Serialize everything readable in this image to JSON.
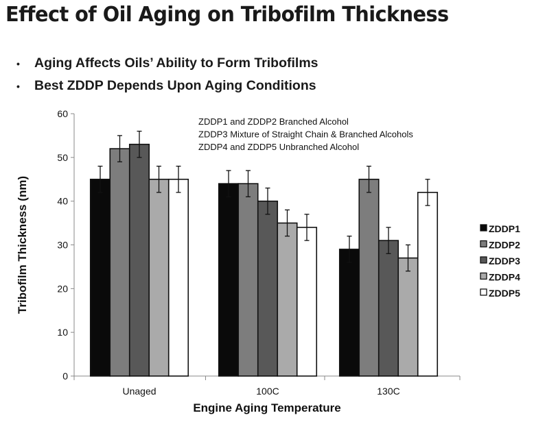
{
  "slide": {
    "title": "Effect of Oil Aging on Tribofilm Thickness",
    "bullets": [
      "Aging Affects Oils’ Ability to Form Tribofilms",
      "Best ZDDP Depends Upon Aging Conditions"
    ],
    "bullet_glyph": "•"
  },
  "chart_data": {
    "type": "bar",
    "title": "",
    "xlabel": "Engine Aging Temperature",
    "ylabel": "Tribofilm Thickness (nm)",
    "ylim": [
      0,
      60
    ],
    "yticks": [
      0,
      10,
      20,
      30,
      40,
      50,
      60
    ],
    "grid": false,
    "legend_position": "right",
    "error_bars": true,
    "categories": [
      "Unaged",
      "100C",
      "130C"
    ],
    "series": [
      {
        "name": "ZDDP1",
        "color": "#0a0a0a",
        "values": [
          45,
          44,
          29
        ],
        "errors": [
          3,
          3,
          3
        ]
      },
      {
        "name": "ZDDP2",
        "color": "#7d7d7d",
        "values": [
          52,
          44,
          45
        ],
        "errors": [
          3,
          3,
          3
        ]
      },
      {
        "name": "ZDDP3",
        "color": "#585858",
        "values": [
          53,
          40,
          31
        ],
        "errors": [
          3,
          3,
          3
        ]
      },
      {
        "name": "ZDDP4",
        "color": "#aaaaaa",
        "values": [
          45,
          35,
          27
        ],
        "errors": [
          3,
          3,
          3
        ]
      },
      {
        "name": "ZDDP5",
        "color": "#ffffff",
        "values": [
          45,
          34,
          42
        ],
        "errors": [
          3,
          3,
          3
        ]
      }
    ],
    "annotations": [
      "ZDDP1 and ZDDP2 Branched Alcohol",
      "ZDDP3 Mixture of Straight Chain & Branched Alcohols",
      "ZDDP4 and ZDDP5 Unbranched Alcohol"
    ]
  }
}
